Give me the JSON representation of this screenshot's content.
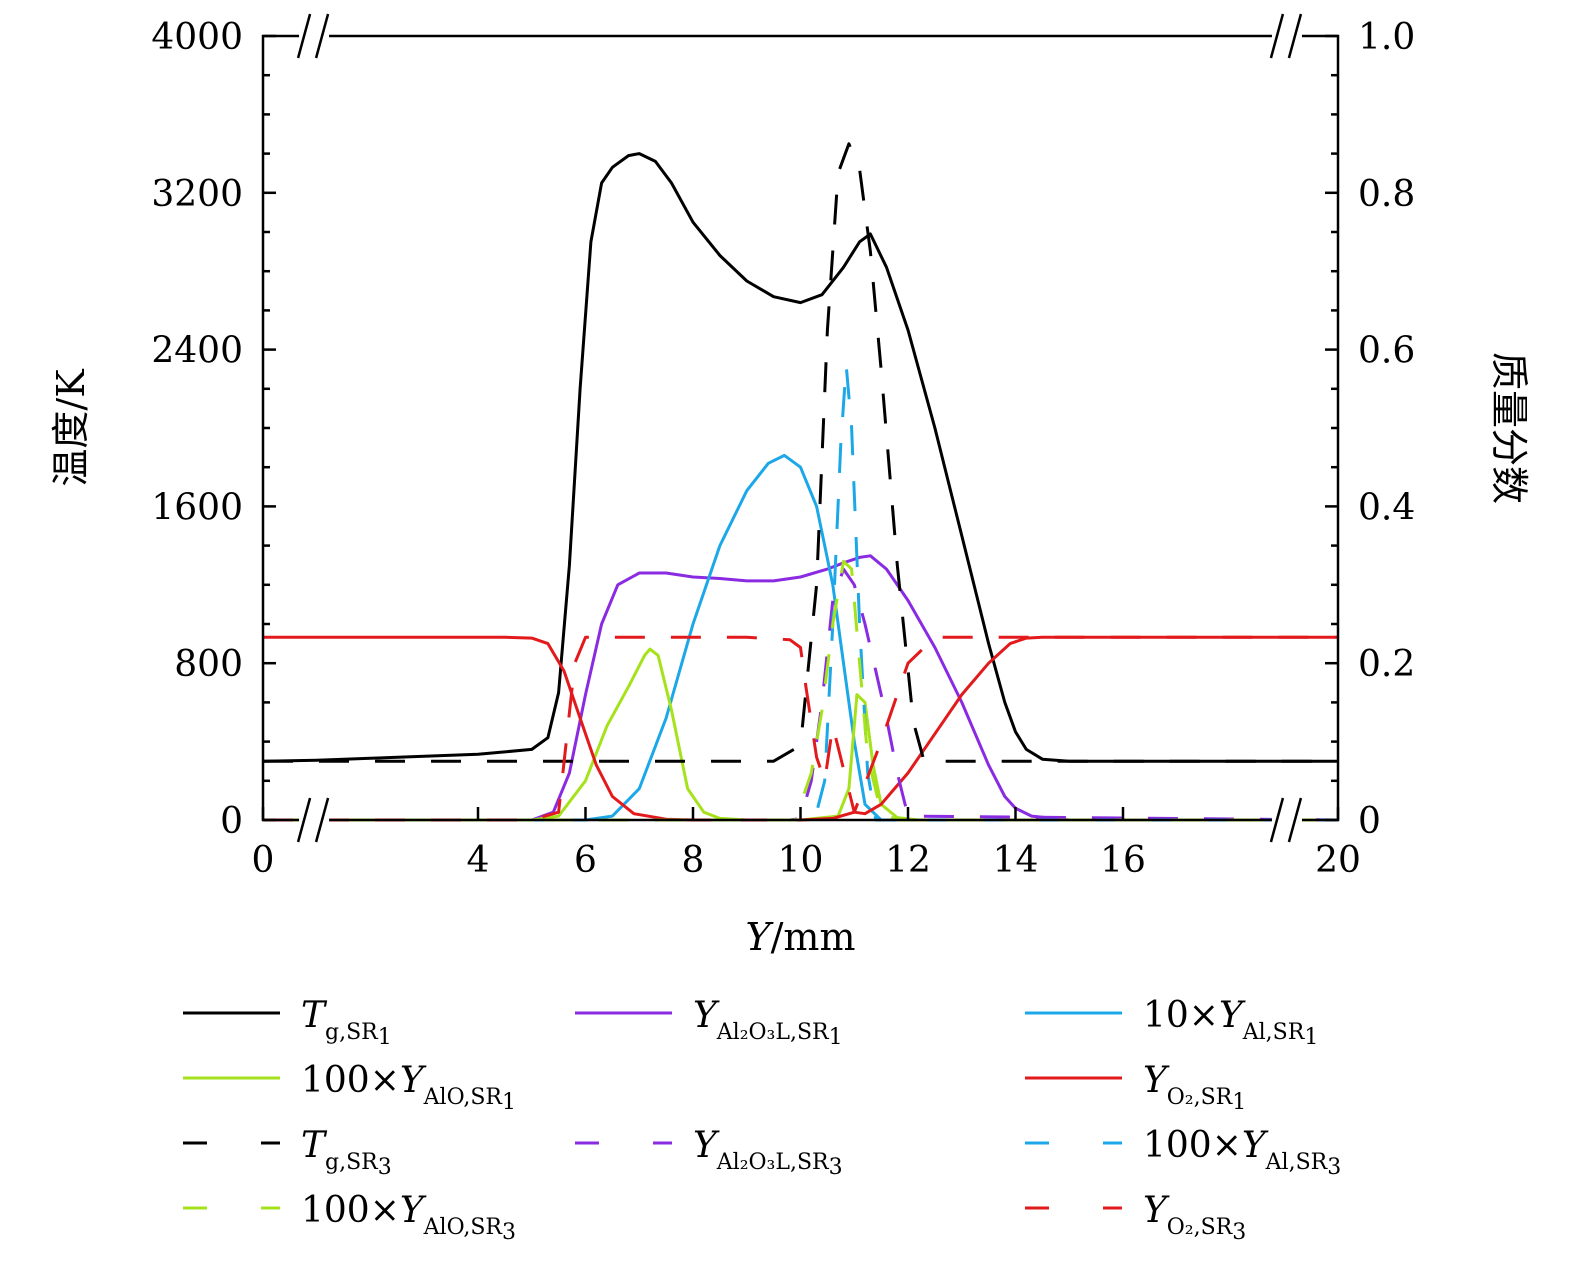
{
  "chart_data": {
    "type": "line",
    "x_label_italic": "Y",
    "x_label_rest": "/mm",
    "y_left_label": "温度/K",
    "y_right_label": "质量分数",
    "xlim": [
      0,
      20
    ],
    "ylim_left": [
      0,
      4000
    ],
    "ylim_right": [
      0,
      1.0
    ],
    "x_ticks": [
      "0",
      "4",
      "6",
      "8",
      "10",
      "12",
      "14",
      "16",
      "20"
    ],
    "x_tick_values": [
      0,
      4,
      6,
      8,
      10,
      12,
      14,
      16,
      20
    ],
    "y_left_ticks": [
      "0",
      "800",
      "1600",
      "2400",
      "3200",
      "4000"
    ],
    "y_left_tick_values": [
      0,
      800,
      1600,
      2400,
      3200,
      4000
    ],
    "y_right_ticks": [
      "0",
      "0.2",
      "0.4",
      "0.6",
      "0.8",
      "1.0"
    ],
    "y_right_tick_values": [
      0,
      0.2,
      0.4,
      0.6,
      0.8,
      1.0
    ],
    "axis_break": "x-axis broken near 1 and 19 (top and bottom)",
    "series": [
      {
        "name": "T_g,SR1",
        "axis": "left",
        "color": "#000000",
        "dash": "solid",
        "x": [
          0,
          1,
          2,
          3,
          4,
          5,
          5.3,
          5.5,
          5.7,
          5.9,
          6.1,
          6.3,
          6.5,
          6.8,
          7,
          7.3,
          7.6,
          8,
          8.5,
          9,
          9.5,
          10,
          10.4,
          10.8,
          11.1,
          11.3,
          11.6,
          12,
          12.5,
          13,
          13.5,
          13.8,
          14,
          14.2,
          14.5,
          15,
          16,
          18,
          20
        ],
        "values": [
          300,
          305,
          315,
          325,
          335,
          360,
          420,
          650,
          1300,
          2200,
          2950,
          3250,
          3330,
          3390,
          3400,
          3360,
          3250,
          3050,
          2880,
          2750,
          2670,
          2640,
          2680,
          2820,
          2950,
          2990,
          2820,
          2500,
          2000,
          1450,
          900,
          600,
          450,
          360,
          310,
          300,
          300,
          300,
          300
        ]
      },
      {
        "name": "Y_Al2O3L,SR1",
        "axis": "right",
        "color": "#8a2be2",
        "dash": "solid",
        "x": [
          0,
          4,
          5,
          5.4,
          5.7,
          6,
          6.3,
          6.6,
          7,
          7.5,
          8,
          8.5,
          9,
          9.5,
          10,
          10.5,
          10.8,
          11.1,
          11.3,
          11.6,
          12,
          12.5,
          13,
          13.5,
          13.8,
          14,
          14.3,
          15,
          20
        ],
        "values": [
          0,
          0,
          0,
          0.01,
          0.06,
          0.16,
          0.25,
          0.3,
          0.315,
          0.315,
          0.31,
          0.308,
          0.305,
          0.305,
          0.31,
          0.32,
          0.328,
          0.335,
          0.337,
          0.32,
          0.28,
          0.22,
          0.15,
          0.07,
          0.03,
          0.015,
          0.005,
          0,
          0
        ]
      },
      {
        "name": "10xY_Al,SR1",
        "axis": "right",
        "color": "#1ca8e8",
        "dash": "solid",
        "x": [
          0,
          5,
          6,
          6.5,
          7,
          7.5,
          8,
          8.5,
          9,
          9.4,
          9.7,
          10,
          10.3,
          10.6,
          10.8,
          11,
          11.2,
          11.5,
          12,
          20
        ],
        "values": [
          0,
          0,
          0,
          0.005,
          0.04,
          0.13,
          0.25,
          0.35,
          0.42,
          0.455,
          0.465,
          0.45,
          0.4,
          0.3,
          0.2,
          0.1,
          0.02,
          0,
          0,
          0
        ]
      },
      {
        "name": "100xY_AlO,SR1",
        "axis": "right",
        "color": "#a6e21c",
        "dash": "solid",
        "x": [
          0,
          5,
          5.5,
          6,
          6.4,
          6.8,
          7.1,
          7.2,
          7.35,
          7.6,
          7.9,
          8.2,
          8.5,
          9,
          10,
          10.7,
          10.9,
          11.05,
          11.2,
          11.35,
          11.5,
          11.8,
          12.2,
          20
        ],
        "values": [
          0,
          0,
          0.005,
          0.05,
          0.12,
          0.17,
          0.21,
          0.218,
          0.21,
          0.14,
          0.04,
          0.01,
          0.002,
          0,
          0,
          0.005,
          0.04,
          0.16,
          0.15,
          0.07,
          0.02,
          0.003,
          0,
          0
        ]
      },
      {
        "name": "Y_O2,SR1",
        "axis": "right",
        "color": "#e31a1c",
        "dash": "solid",
        "x": [
          0,
          3,
          4.5,
          5,
          5.3,
          5.6,
          5.9,
          6.2,
          6.5,
          6.9,
          7.5,
          8,
          9,
          10,
          10.6,
          11,
          11.2,
          11.5,
          12,
          12.5,
          13,
          13.5,
          13.9,
          14.2,
          14.5,
          16,
          20
        ],
        "values": [
          0.233,
          0.233,
          0.233,
          0.232,
          0.225,
          0.19,
          0.13,
          0.07,
          0.03,
          0.008,
          0.001,
          0,
          0,
          0,
          0.002,
          0.01,
          0.008,
          0.02,
          0.06,
          0.11,
          0.16,
          0.2,
          0.225,
          0.232,
          0.233,
          0.233,
          0.233
        ]
      },
      {
        "name": "T_g,SR3",
        "axis": "left",
        "color": "#000000",
        "dash": "dash",
        "x": [
          0,
          9.5,
          10,
          10.3,
          10.5,
          10.7,
          10.9,
          11.1,
          11.3,
          11.5,
          11.8,
          12.1,
          12.3,
          20
        ],
        "values": [
          300,
          300,
          380,
          1200,
          2500,
          3300,
          3450,
          3320,
          2900,
          2300,
          1300,
          500,
          300,
          300
        ]
      },
      {
        "name": "Y_Al2O3L,SR3",
        "axis": "right",
        "color": "#8a2be2",
        "dash": "dash",
        "x": [
          0,
          9.8,
          10,
          10.2,
          10.4,
          10.6,
          10.8,
          11,
          11.2,
          11.4,
          11.6,
          11.8,
          12,
          20
        ],
        "values": [
          0,
          0,
          0.002,
          0.05,
          0.15,
          0.28,
          0.32,
          0.3,
          0.25,
          0.19,
          0.13,
          0.06,
          0.005,
          0
        ]
      },
      {
        "name": "100xY_Al,SR3",
        "axis": "right",
        "color": "#1ca8e8",
        "dash": "dash",
        "x": [
          0,
          10,
          10.3,
          10.45,
          10.6,
          10.75,
          10.85,
          10.95,
          11.1,
          11.25,
          11.4,
          20
        ],
        "values": [
          0,
          0,
          0.01,
          0.05,
          0.25,
          0.48,
          0.58,
          0.5,
          0.25,
          0.06,
          0,
          0
        ]
      },
      {
        "name": "100xY_AlO,SR3",
        "axis": "right",
        "color": "#a6e21c",
        "dash": "dash",
        "x": [
          0,
          9.9,
          10.2,
          10.4,
          10.6,
          10.8,
          10.95,
          11.1,
          11.25,
          11.5,
          11.8,
          20
        ],
        "values": [
          0,
          0,
          0.06,
          0.14,
          0.25,
          0.33,
          0.32,
          0.2,
          0.08,
          0.01,
          0,
          0
        ]
      },
      {
        "name": "Y_O2,SR3",
        "axis": "right",
        "color": "#e31a1c",
        "dash": "dash",
        "x": [
          0,
          5,
          5.5,
          5.8,
          6,
          8,
          9,
          9.8,
          10,
          10.1,
          10.3,
          10.45,
          10.6,
          11,
          11.5,
          12,
          12.5,
          13,
          20
        ],
        "values": [
          0,
          0,
          0.01,
          0.2,
          0.233,
          0.233,
          0.233,
          0.23,
          0.22,
          0.17,
          0.08,
          0.05,
          0.12,
          0.01,
          0.1,
          0.2,
          0.233,
          0.233,
          0.233
        ]
      }
    ],
    "legend": {
      "placement": "bottom",
      "entries": [
        {
          "prefix": "",
          "sym": "T",
          "sub": "g,SR",
          "num": "1",
          "color": "#000000",
          "dash": "solid"
        },
        {
          "prefix": "",
          "sym": "Y",
          "sub": "Al₂O₃L,SR",
          "num": "1",
          "color": "#8a2be2",
          "dash": "solid"
        },
        {
          "prefix": "10×",
          "sym": "Y",
          "sub": "Al,SR",
          "num": "1",
          "color": "#1ca8e8",
          "dash": "solid"
        },
        {
          "prefix": "100×",
          "sym": "Y",
          "sub": "AlO,SR",
          "num": "1",
          "color": "#a6e21c",
          "dash": "solid"
        },
        {
          "prefix": "",
          "sym": "Y",
          "sub": "O₂,SR",
          "num": "1",
          "color": "#e31a1c",
          "dash": "solid"
        },
        {
          "prefix": "",
          "sym": "T",
          "sub": "g,SR",
          "num": "3",
          "color": "#000000",
          "dash": "dash"
        },
        {
          "prefix": "",
          "sym": "Y",
          "sub": "Al₂O₃L,SR",
          "num": "3",
          "color": "#8a2be2",
          "dash": "dash"
        },
        {
          "prefix": "100×",
          "sym": "Y",
          "sub": "Al,SR",
          "num": "3",
          "color": "#1ca8e8",
          "dash": "dash"
        },
        {
          "prefix": "100×",
          "sym": "Y",
          "sub": "AlO,SR",
          "num": "3",
          "color": "#a6e21c",
          "dash": "dash"
        },
        {
          "prefix": "",
          "sym": "Y",
          "sub": "O₂,SR",
          "num": "3",
          "color": "#e31a1c",
          "dash": "dash"
        }
      ]
    }
  }
}
